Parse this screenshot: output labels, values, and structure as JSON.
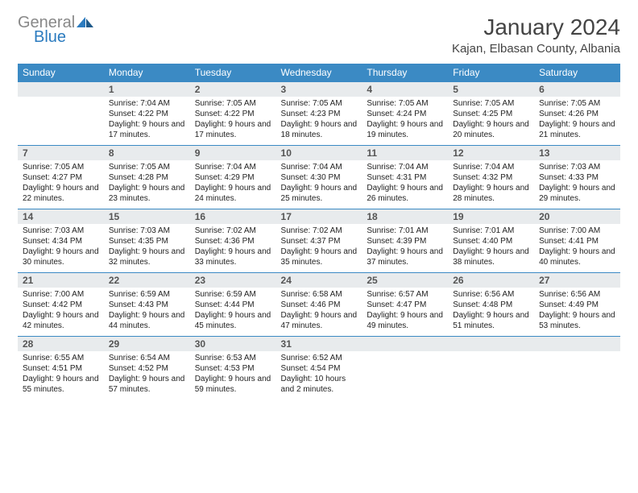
{
  "brand": {
    "part1": "General",
    "part2": "Blue"
  },
  "title": "January 2024",
  "location": "Kajan, Elbasan County, Albania",
  "colors": {
    "header_bg": "#3b8ac4",
    "header_text": "#ffffff",
    "daynum_bg": "#e8ebed",
    "daynum_text": "#555555",
    "body_text": "#222222",
    "rule": "#3b8ac4",
    "title_text": "#444444",
    "logo_gray": "#888888",
    "logo_blue": "#2b7bbf"
  },
  "typography": {
    "title_fontsize": 28,
    "location_fontsize": 15,
    "dow_fontsize": 12,
    "daynum_fontsize": 12,
    "detail_fontsize": 10
  },
  "dow": [
    "Sunday",
    "Monday",
    "Tuesday",
    "Wednesday",
    "Thursday",
    "Friday",
    "Saturday"
  ],
  "weeks": [
    [
      null,
      {
        "n": "1",
        "sr": "7:04 AM",
        "ss": "4:22 PM",
        "dl": "9 hours and 17 minutes."
      },
      {
        "n": "2",
        "sr": "7:05 AM",
        "ss": "4:22 PM",
        "dl": "9 hours and 17 minutes."
      },
      {
        "n": "3",
        "sr": "7:05 AM",
        "ss": "4:23 PM",
        "dl": "9 hours and 18 minutes."
      },
      {
        "n": "4",
        "sr": "7:05 AM",
        "ss": "4:24 PM",
        "dl": "9 hours and 19 minutes."
      },
      {
        "n": "5",
        "sr": "7:05 AM",
        "ss": "4:25 PM",
        "dl": "9 hours and 20 minutes."
      },
      {
        "n": "6",
        "sr": "7:05 AM",
        "ss": "4:26 PM",
        "dl": "9 hours and 21 minutes."
      }
    ],
    [
      {
        "n": "7",
        "sr": "7:05 AM",
        "ss": "4:27 PM",
        "dl": "9 hours and 22 minutes."
      },
      {
        "n": "8",
        "sr": "7:05 AM",
        "ss": "4:28 PM",
        "dl": "9 hours and 23 minutes."
      },
      {
        "n": "9",
        "sr": "7:04 AM",
        "ss": "4:29 PM",
        "dl": "9 hours and 24 minutes."
      },
      {
        "n": "10",
        "sr": "7:04 AM",
        "ss": "4:30 PM",
        "dl": "9 hours and 25 minutes."
      },
      {
        "n": "11",
        "sr": "7:04 AM",
        "ss": "4:31 PM",
        "dl": "9 hours and 26 minutes."
      },
      {
        "n": "12",
        "sr": "7:04 AM",
        "ss": "4:32 PM",
        "dl": "9 hours and 28 minutes."
      },
      {
        "n": "13",
        "sr": "7:03 AM",
        "ss": "4:33 PM",
        "dl": "9 hours and 29 minutes."
      }
    ],
    [
      {
        "n": "14",
        "sr": "7:03 AM",
        "ss": "4:34 PM",
        "dl": "9 hours and 30 minutes."
      },
      {
        "n": "15",
        "sr": "7:03 AM",
        "ss": "4:35 PM",
        "dl": "9 hours and 32 minutes."
      },
      {
        "n": "16",
        "sr": "7:02 AM",
        "ss": "4:36 PM",
        "dl": "9 hours and 33 minutes."
      },
      {
        "n": "17",
        "sr": "7:02 AM",
        "ss": "4:37 PM",
        "dl": "9 hours and 35 minutes."
      },
      {
        "n": "18",
        "sr": "7:01 AM",
        "ss": "4:39 PM",
        "dl": "9 hours and 37 minutes."
      },
      {
        "n": "19",
        "sr": "7:01 AM",
        "ss": "4:40 PM",
        "dl": "9 hours and 38 minutes."
      },
      {
        "n": "20",
        "sr": "7:00 AM",
        "ss": "4:41 PM",
        "dl": "9 hours and 40 minutes."
      }
    ],
    [
      {
        "n": "21",
        "sr": "7:00 AM",
        "ss": "4:42 PM",
        "dl": "9 hours and 42 minutes."
      },
      {
        "n": "22",
        "sr": "6:59 AM",
        "ss": "4:43 PM",
        "dl": "9 hours and 44 minutes."
      },
      {
        "n": "23",
        "sr": "6:59 AM",
        "ss": "4:44 PM",
        "dl": "9 hours and 45 minutes."
      },
      {
        "n": "24",
        "sr": "6:58 AM",
        "ss": "4:46 PM",
        "dl": "9 hours and 47 minutes."
      },
      {
        "n": "25",
        "sr": "6:57 AM",
        "ss": "4:47 PM",
        "dl": "9 hours and 49 minutes."
      },
      {
        "n": "26",
        "sr": "6:56 AM",
        "ss": "4:48 PM",
        "dl": "9 hours and 51 minutes."
      },
      {
        "n": "27",
        "sr": "6:56 AM",
        "ss": "4:49 PM",
        "dl": "9 hours and 53 minutes."
      }
    ],
    [
      {
        "n": "28",
        "sr": "6:55 AM",
        "ss": "4:51 PM",
        "dl": "9 hours and 55 minutes."
      },
      {
        "n": "29",
        "sr": "6:54 AM",
        "ss": "4:52 PM",
        "dl": "9 hours and 57 minutes."
      },
      {
        "n": "30",
        "sr": "6:53 AM",
        "ss": "4:53 PM",
        "dl": "9 hours and 59 minutes."
      },
      {
        "n": "31",
        "sr": "6:52 AM",
        "ss": "4:54 PM",
        "dl": "10 hours and 2 minutes."
      },
      null,
      null,
      null
    ]
  ],
  "labels": {
    "sunrise": "Sunrise:",
    "sunset": "Sunset:",
    "daylight": "Daylight:"
  }
}
